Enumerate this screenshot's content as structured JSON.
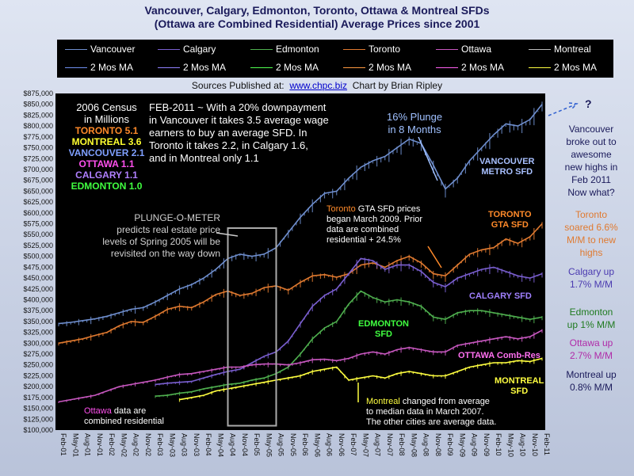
{
  "title_line1": "Vancouver, Calgary, Edmonton, Toronto, Ottawa & Montreal SFDs",
  "title_line2": "(Ottawa are Combined Residential) Average Prices since 2001",
  "legend": [
    {
      "label": "Vancouver",
      "color": "#6f8fcf"
    },
    {
      "label": "Calgary",
      "color": "#7a5fd0"
    },
    {
      "label": "Edmonton",
      "color": "#4fb04f"
    },
    {
      "label": "Toronto",
      "color": "#e07a30"
    },
    {
      "label": "Ottawa",
      "color": "#c858c0"
    },
    {
      "label": "Montreal",
      "color": "#bfbfbf"
    }
  ],
  "legend_ma": [
    {
      "label": "2 Mos MA",
      "color": "#6f8fef"
    },
    {
      "label": "2 Mos MA",
      "color": "#9080ff"
    },
    {
      "label": "2 Mos MA",
      "color": "#50ff50"
    },
    {
      "label": "2 Mos MA",
      "color": "#ff9a40"
    },
    {
      "label": "2 Mos MA",
      "color": "#ff60f0"
    },
    {
      "label": "2 Mos MA",
      "color": "#ffff40"
    }
  ],
  "sources": {
    "prefix": "Sources Published at:",
    "link": "www.chpc.biz",
    "suffix": "Chart by Brian Ripley"
  },
  "census": {
    "heading": "2006 Census\nin Millions",
    "rows": [
      {
        "text": "TORONTO 5.1",
        "color": "#ff8a2a"
      },
      {
        "text": "MONTREAL 3.6",
        "color": "#ffff30"
      },
      {
        "text": "VANCOUVER 2.1",
        "color": "#7fa0ff"
      },
      {
        "text": "OTTAWA 1.1",
        "color": "#ff50ee"
      },
      {
        "text": "CALGARY 1.1",
        "color": "#b080ff"
      },
      {
        "text": "EDMONTON 1.0",
        "color": "#40ff40"
      }
    ]
  },
  "annotations": {
    "feb2011": "FEB-2011 ~ With a 20% downpayment\nin Vancouver it takes 3.5 average wage\nearners to buy an average SFD. In\nToronto it takes 2.2, in Calgary 1.6,\nand in Montreal only 1.1",
    "plunge": "16% Plunge\nin 8 Months",
    "vancouver_metro": "VANCOUVER\nMETRO SFD",
    "plunge_o_meter": "PLUNGE-O-METER\npredicts real estate price\nlevels of Spring 2005 will be\nrevisited on the way down",
    "toronto_gta_note_1": "Toronto",
    "toronto_gta_note_2": " GTA SFD prices\nbegan March 2009.  Prior\ndata are combined\nresidential + 24.5%",
    "toronto_gta": "TORONTO\nGTA SFD",
    "calgary_sfd": "CALGARY SFD",
    "edmonton_sfd": "EDMONTON\nSFD",
    "ottawa_comb": "OTTAWA Comb-Res",
    "montreal_sfd": "MONTREAL\nSFD",
    "ottawa_note_1": "Ottawa",
    "ottawa_note_2": " data are\ncombined residential",
    "montreal_note_1": "Montreal",
    "montreal_note_2": " changed from average\nto median data in March 2007.\nThe other cities are average data.",
    "question": "?",
    "right_vancouver": "Vancouver\nbroke out to\nawesome\nnew highs in\nFeb 2011\nNow what?",
    "right_toronto": "Toronto\nsoared 6.6%\nM/M to new\nhighs",
    "right_calgary": "Calgary up\n1.7% M/M",
    "right_edmonton": "Edmonton\nup 1% M/M",
    "right_ottawa": "Ottawa up\n2.7% M/M",
    "right_montreal": "Montreal up\n0.8% M/M"
  },
  "chart_data": {
    "type": "line",
    "ylim": [
      100000,
      875000
    ],
    "y_ticks": [
      "$100,000",
      "$125,000",
      "$150,000",
      "$175,000",
      "$200,000",
      "$225,000",
      "$250,000",
      "$275,000",
      "$300,000",
      "$325,000",
      "$350,000",
      "$375,000",
      "$400,000",
      "$425,000",
      "$450,000",
      "$475,000",
      "$500,000",
      "$525,000",
      "$550,000",
      "$575,000",
      "$600,000",
      "$625,000",
      "$650,000",
      "$675,000",
      "$700,000",
      "$725,000",
      "$750,000",
      "$775,000",
      "$800,000",
      "$825,000",
      "$850,000",
      "$875,000"
    ],
    "x_ticks": [
      "Feb-01",
      "May-01",
      "Aug-01",
      "Nov-01",
      "Feb-02",
      "May-02",
      "Aug-02",
      "Nov-02",
      "Feb-03",
      "May-03",
      "Aug-03",
      "Nov-03",
      "Feb-04",
      "May-04",
      "Aug-04",
      "Nov-04",
      "Feb-05",
      "May-05",
      "Aug-05",
      "Nov-05",
      "Feb-06",
      "May-06",
      "Aug-06",
      "Nov-06",
      "Feb-07",
      "May-07",
      "Aug-07",
      "Nov-07",
      "Feb-08",
      "May-08",
      "Aug-08",
      "Nov-08",
      "Feb-09",
      "May-09",
      "Aug-09",
      "Nov-09",
      "Feb-10",
      "May-10",
      "Aug-10",
      "Nov-10",
      "Feb-11"
    ],
    "series": [
      {
        "name": "Vancouver",
        "color": "#6f8fcf",
        "x": [
          0,
          3,
          6,
          9,
          12,
          15,
          18,
          21,
          24,
          27,
          30,
          33,
          36,
          39,
          42,
          45,
          48,
          51,
          54,
          57,
          60,
          63,
          66,
          69,
          72,
          75,
          78,
          81,
          84,
          87,
          90,
          93,
          96,
          99,
          102,
          105,
          108,
          111,
          114,
          117,
          120
        ],
        "values": [
          345000,
          348000,
          352000,
          356000,
          362000,
          370000,
          378000,
          382000,
          395000,
          410000,
          425000,
          435000,
          450000,
          470000,
          495000,
          505000,
          500000,
          505000,
          520000,
          555000,
          590000,
          620000,
          645000,
          650000,
          680000,
          705000,
          720000,
          730000,
          750000,
          770000,
          760000,
          710000,
          655000,
          680000,
          720000,
          750000,
          780000,
          805000,
          800000,
          815000,
          850000
        ]
      },
      {
        "name": "Toronto",
        "color": "#e07a30",
        "x": [
          0,
          3,
          6,
          9,
          12,
          15,
          18,
          21,
          24,
          27,
          30,
          33,
          36,
          39,
          42,
          45,
          48,
          51,
          54,
          57,
          60,
          63,
          66,
          69,
          72,
          75,
          78,
          81,
          84,
          87,
          90,
          93,
          96,
          99,
          102,
          105,
          108,
          111,
          114,
          117,
          120
        ],
        "values": [
          300000,
          305000,
          310000,
          318000,
          325000,
          340000,
          350000,
          348000,
          362000,
          378000,
          385000,
          382000,
          395000,
          412000,
          420000,
          410000,
          415000,
          428000,
          432000,
          422000,
          440000,
          455000,
          458000,
          452000,
          460000,
          480000,
          485000,
          475000,
          490000,
          500000,
          485000,
          460000,
          455000,
          480000,
          505000,
          515000,
          520000,
          540000,
          530000,
          545000,
          575000
        ]
      },
      {
        "name": "Calgary",
        "color": "#7a5fd0",
        "x": [
          24,
          27,
          30,
          33,
          36,
          39,
          42,
          45,
          48,
          51,
          54,
          57,
          60,
          63,
          66,
          69,
          72,
          75,
          78,
          81,
          84,
          87,
          90,
          93,
          96,
          99,
          102,
          105,
          108,
          111,
          114,
          117,
          120
        ],
        "values": [
          205000,
          208000,
          210000,
          212000,
          220000,
          228000,
          235000,
          240000,
          255000,
          270000,
          280000,
          305000,
          345000,
          385000,
          410000,
          425000,
          460000,
          495000,
          490000,
          470000,
          480000,
          480000,
          465000,
          440000,
          430000,
          450000,
          460000,
          470000,
          475000,
          465000,
          455000,
          450000,
          460000
        ]
      },
      {
        "name": "Edmonton",
        "color": "#4fb04f",
        "x": [
          24,
          27,
          30,
          33,
          36,
          39,
          42,
          45,
          48,
          51,
          54,
          57,
          60,
          63,
          66,
          69,
          72,
          75,
          78,
          81,
          84,
          87,
          90,
          93,
          96,
          99,
          102,
          105,
          108,
          111,
          114,
          117,
          120
        ],
        "values": [
          178000,
          180000,
          185000,
          188000,
          195000,
          200000,
          205000,
          208000,
          215000,
          220000,
          230000,
          245000,
          275000,
          310000,
          335000,
          350000,
          390000,
          420000,
          405000,
          395000,
          400000,
          395000,
          385000,
          360000,
          355000,
          370000,
          375000,
          375000,
          370000,
          365000,
          360000,
          355000,
          360000
        ]
      },
      {
        "name": "Ottawa",
        "color": "#c858c0",
        "x": [
          0,
          3,
          6,
          9,
          12,
          15,
          18,
          21,
          24,
          27,
          30,
          33,
          36,
          39,
          42,
          45,
          48,
          51,
          54,
          57,
          60,
          63,
          66,
          69,
          72,
          75,
          78,
          81,
          84,
          87,
          90,
          93,
          96,
          99,
          102,
          105,
          108,
          111,
          114,
          117,
          120
        ],
        "values": [
          165000,
          170000,
          175000,
          180000,
          190000,
          200000,
          205000,
          210000,
          215000,
          222000,
          228000,
          230000,
          235000,
          240000,
          245000,
          245000,
          250000,
          252000,
          252000,
          250000,
          255000,
          262000,
          263000,
          260000,
          265000,
          275000,
          280000,
          275000,
          285000,
          290000,
          285000,
          280000,
          280000,
          295000,
          300000,
          305000,
          310000,
          315000,
          310000,
          315000,
          330000
        ]
      },
      {
        "name": "Montreal",
        "color": "#ffff40",
        "x": [
          30,
          33,
          36,
          39,
          42,
          45,
          48,
          51,
          54,
          57,
          60,
          63,
          66,
          69,
          72,
          75,
          78,
          81,
          84,
          87,
          90,
          93,
          96,
          99,
          102,
          105,
          108,
          111,
          114,
          117,
          120
        ],
        "values": [
          170000,
          175000,
          180000,
          190000,
          195000,
          200000,
          205000,
          210000,
          215000,
          220000,
          225000,
          235000,
          240000,
          245000,
          215000,
          220000,
          225000,
          220000,
          230000,
          235000,
          230000,
          225000,
          225000,
          235000,
          245000,
          250000,
          255000,
          255000,
          260000,
          258000,
          265000
        ]
      }
    ]
  }
}
